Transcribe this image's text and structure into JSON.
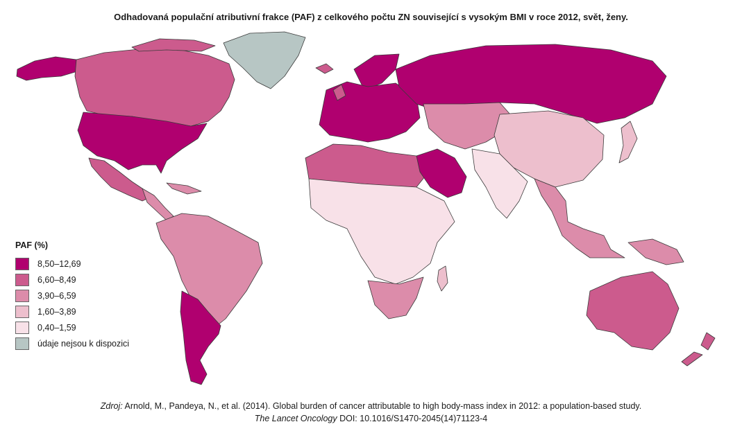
{
  "title": "Odhadovaná populační atributivní frakce (PAF) z celkového počtu ZN související s vysokým BMI v roce 2012, svět, ženy.",
  "legend": {
    "title": "PAF (%)",
    "items": [
      {
        "label": "8,50–12,69",
        "color": "#b0006f"
      },
      {
        "label": "6,60–8,49",
        "color": "#cc5b8d"
      },
      {
        "label": "3,90–6,59",
        "color": "#dc8caa"
      },
      {
        "label": "1,60–3,89",
        "color": "#edbfcd"
      },
      {
        "label": "0,40–1,59",
        "color": "#f8e1e8"
      },
      {
        "label": "údaje nejsou k dispozici",
        "color": "#b7c6c4"
      }
    ]
  },
  "regions": [
    {
      "name": "Canada",
      "class": "6,60–8,49"
    },
    {
      "name": "Greenland",
      "class": "údaje nejsou k dispozici"
    },
    {
      "name": "Alaska",
      "class": "8,50–12,69"
    },
    {
      "name": "USA",
      "class": "8,50–12,69"
    },
    {
      "name": "Mexico",
      "class": "6,60–8,49"
    },
    {
      "name": "South America",
      "class": "3,90–6,59"
    },
    {
      "name": "Argentina / Chile",
      "class": "8,50–12,69"
    },
    {
      "name": "Europe",
      "class": "8,50–12,69"
    },
    {
      "name": "Russia",
      "class": "8,50–12,69"
    },
    {
      "name": "North Africa",
      "class": "6,60–8,49"
    },
    {
      "name": "Sub-Saharan Africa",
      "class": "0,40–1,59"
    },
    {
      "name": "Southern Africa",
      "class": "3,90–6,59"
    },
    {
      "name": "Middle East",
      "class": "8,50–12,69"
    },
    {
      "name": "Central Asia",
      "class": "3,90–6,59"
    },
    {
      "name": "China",
      "class": "1,60–3,89"
    },
    {
      "name": "India",
      "class": "0,40–1,59"
    },
    {
      "name": "Southeast Asia",
      "class": "3,90–6,59"
    },
    {
      "name": "Australia",
      "class": "6,60–8,49"
    },
    {
      "name": "New Zealand",
      "class": "6,60–8,49"
    }
  ],
  "source": {
    "prefix": "Zdroj:",
    "line1": " Arnold, M., Pandeya, N., et al. (2014). Global burden of cancer attributable to high body-mass index in 2012: a population-based study.",
    "journal": "The Lancet Oncology",
    "line2": " DOI: 10.1016/S1470-2045(14)71123-4"
  }
}
